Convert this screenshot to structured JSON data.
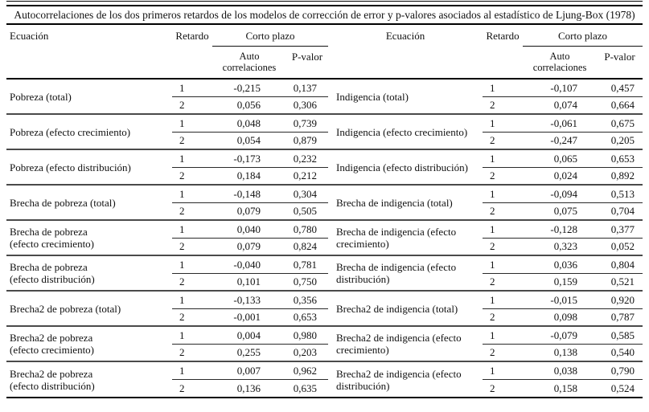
{
  "table": {
    "title": "Autocorrelaciones de los dos primeros retardos de los modelos de corrección de error y p-valores asociados al estadístico de Ljung-Box (1978)",
    "headers": {
      "equation": "Ecuación",
      "lag": "Retardo",
      "short_term": "Corto plazo",
      "autocorrelations": "Auto\ncorrelaciones",
      "p_value": "P-valor"
    },
    "left_groups": [
      {
        "equation": "Pobreza (total)",
        "rows": [
          {
            "lag": "1",
            "auto": "-0,215",
            "p": "0,137"
          },
          {
            "lag": "2",
            "auto": "0,056",
            "p": "0,306"
          }
        ]
      },
      {
        "equation": "Pobreza (efecto crecimiento)",
        "rows": [
          {
            "lag": "1",
            "auto": "0,048",
            "p": "0,739"
          },
          {
            "lag": "2",
            "auto": "0,054",
            "p": "0,879"
          }
        ]
      },
      {
        "equation": "Pobreza (efecto distribución)",
        "rows": [
          {
            "lag": "1",
            "auto": "-0,173",
            "p": "0,232"
          },
          {
            "lag": "2",
            "auto": "0,184",
            "p": "0,212"
          }
        ]
      },
      {
        "equation": "Brecha de pobreza (total)",
        "rows": [
          {
            "lag": "1",
            "auto": "-0,148",
            "p": "0,304"
          },
          {
            "lag": "2",
            "auto": "0,079",
            "p": "0,505"
          }
        ]
      },
      {
        "equation": "Brecha de pobreza\n(efecto crecimiento)",
        "rows": [
          {
            "lag": "1",
            "auto": "0,040",
            "p": "0,780"
          },
          {
            "lag": "2",
            "auto": "0,079",
            "p": "0,824"
          }
        ]
      },
      {
        "equation": "Brecha de pobreza\n(efecto distribución)",
        "rows": [
          {
            "lag": "1",
            "auto": "-0,040",
            "p": "0,781"
          },
          {
            "lag": "2",
            "auto": "0,101",
            "p": "0,750"
          }
        ]
      },
      {
        "equation": "Brecha2 de pobreza (total)",
        "rows": [
          {
            "lag": "1",
            "auto": "-0,133",
            "p": "0,356"
          },
          {
            "lag": "2",
            "auto": "-0,001",
            "p": "0,653"
          }
        ]
      },
      {
        "equation": "Brecha2 de pobreza\n(efecto crecimiento)",
        "rows": [
          {
            "lag": "1",
            "auto": "0,004",
            "p": "0,980"
          },
          {
            "lag": "2",
            "auto": "0,255",
            "p": "0,203"
          }
        ]
      },
      {
        "equation": "Brecha2 de pobreza\n(efecto distribución)",
        "rows": [
          {
            "lag": "1",
            "auto": "0,007",
            "p": "0,962"
          },
          {
            "lag": "2",
            "auto": "0,136",
            "p": "0,635"
          }
        ]
      }
    ],
    "right_groups": [
      {
        "equation": "Indigencia (total)",
        "rows": [
          {
            "lag": "1",
            "auto": "-0,107",
            "p": "0,457"
          },
          {
            "lag": "2",
            "auto": "0,074",
            "p": "0,664"
          }
        ]
      },
      {
        "equation": "Indigencia (efecto crecimiento)",
        "rows": [
          {
            "lag": "1",
            "auto": "-0,061",
            "p": "0,675"
          },
          {
            "lag": "2",
            "auto": "-0,247",
            "p": "0,205"
          }
        ]
      },
      {
        "equation": "Indigencia (efecto distribución)",
        "rows": [
          {
            "lag": "1",
            "auto": "0,065",
            "p": "0,653"
          },
          {
            "lag": "2",
            "auto": "0,024",
            "p": "0,892"
          }
        ]
      },
      {
        "equation": "Brecha de indigencia (total)",
        "rows": [
          {
            "lag": "1",
            "auto": "-0,094",
            "p": "0,513"
          },
          {
            "lag": "2",
            "auto": "0,075",
            "p": "0,704"
          }
        ]
      },
      {
        "equation": "Brecha de indigencia (efecto\ncrecimiento)",
        "rows": [
          {
            "lag": "1",
            "auto": "-0,128",
            "p": "0,377"
          },
          {
            "lag": "2",
            "auto": "0,323",
            "p": "0,052"
          }
        ]
      },
      {
        "equation": "Brecha de indigencia (efecto\ndistribución)",
        "rows": [
          {
            "lag": "1",
            "auto": "0,036",
            "p": "0,804"
          },
          {
            "lag": "2",
            "auto": "0,159",
            "p": "0,521"
          }
        ]
      },
      {
        "equation": "Brecha2 de indigencia (total)",
        "rows": [
          {
            "lag": "1",
            "auto": "-0,015",
            "p": "0,920"
          },
          {
            "lag": "2",
            "auto": "0,098",
            "p": "0,787"
          }
        ]
      },
      {
        "equation": "Brecha2 de indigencia (efecto\ncrecimiento)",
        "rows": [
          {
            "lag": "1",
            "auto": "-0,079",
            "p": "0,585"
          },
          {
            "lag": "2",
            "auto": "0,138",
            "p": "0,540"
          }
        ]
      },
      {
        "equation": "Brecha2 de indigencia (efecto\ndistribución)",
        "rows": [
          {
            "lag": "1",
            "auto": "0,038",
            "p": "0,790"
          },
          {
            "lag": "2",
            "auto": "0,158",
            "p": "0,524"
          }
        ]
      }
    ],
    "colors": {
      "rule": "#000000",
      "group_separator": "#4a4a4a",
      "text": "#111111",
      "background": "#ffffff"
    }
  }
}
